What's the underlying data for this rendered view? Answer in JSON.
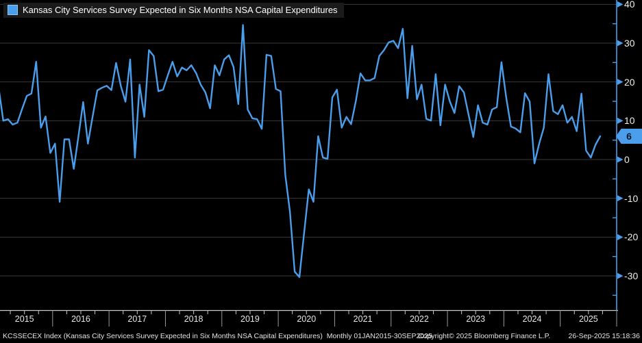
{
  "legend": {
    "series_label": "Kansas City Services Survey Expected in Six Months NSA Capital Expenditures",
    "swatch_color": "#4a9eeb"
  },
  "footer": {
    "left": "KCSSECEX Index (Kansas City Services Survey Expected in Six Months NSA Capital Expenditures)  Monthly 01JAN2015-30SEP2025",
    "copyright": "Copyright© 2025 Bloomberg Finance L.P.",
    "timestamp": "26-Sep-2025 15:18:36"
  },
  "last_point": {
    "label": "6",
    "value": 6
  },
  "colors": {
    "background": "#000000",
    "line": "#4a9eeb",
    "grid": "#3a3a3a",
    "y_axis": "#4a9eeb",
    "x_axis": "#c8c8c8",
    "year_separator": "#9a9a9a",
    "tick_label": "#f0efe6",
    "badge_bg": "#4a9eeb",
    "badge_text": "#0a1626"
  },
  "chart_data": {
    "type": "line",
    "title": "Kansas City Services Survey Expected in Six Months NSA Capital Expenditures",
    "ticker": "KCSSECEX Index",
    "frequency": "monthly",
    "start": "JAN2015",
    "end": "SEP2025",
    "x_years": [
      2015,
      2016,
      2017,
      2018,
      2019,
      2020,
      2021,
      2022,
      2023,
      2024,
      2025
    ],
    "yticks_major": [
      40,
      30,
      20,
      10,
      0,
      -10,
      -20,
      -30
    ],
    "ytick_minor_step": 5,
    "ylim": [
      -38,
      41
    ],
    "grid": "horizontal",
    "legend_position": "top-left",
    "series": [
      {
        "name": "KCSSECEX Index",
        "values": [
          18.7,
          10,
          10.4,
          9,
          9.5,
          13,
          16.4,
          17,
          25.2,
          8.2,
          11.1,
          1.7,
          4.1,
          -10.9,
          5.2,
          5.2,
          -2.4,
          6,
          14.8,
          4.1,
          11,
          17.8,
          18.5,
          19,
          17.9,
          24.9,
          19,
          14.9,
          25.8,
          0.5,
          19.3,
          11,
          28.2,
          26.7,
          17.6,
          18,
          21.7,
          25.2,
          21.4,
          23.7,
          23,
          24.3,
          22.3,
          19.3,
          17.3,
          13.2,
          24.3,
          21.7,
          25.8,
          26.9,
          23.8,
          14.3,
          34.7,
          12.9,
          10.6,
          10.4,
          7.9,
          27,
          26.7,
          18.2,
          17.6,
          -4,
          -13.5,
          -28.9,
          -30.3,
          -19,
          -7.7,
          -10.9,
          6,
          0.5,
          0.2,
          16,
          18,
          8.2,
          11,
          9.1,
          15,
          22.2,
          20.4,
          20.4,
          21,
          26.7,
          28.2,
          30.2,
          30.6,
          28.7,
          33.7,
          15.8,
          29.3,
          15.5,
          19.3,
          10.5,
          10,
          22,
          8.8,
          19.3,
          15,
          12,
          18.9,
          17.3,
          11.5,
          5.8,
          14,
          9.5,
          9,
          12.9,
          13.5,
          25.1,
          16,
          8.5,
          8,
          7,
          17.1,
          14.9,
          -1,
          4,
          8.2,
          22,
          12.5,
          11.7,
          14,
          9.5,
          11,
          7.3,
          17,
          2.3,
          0.5,
          3.8,
          6
        ]
      }
    ]
  }
}
